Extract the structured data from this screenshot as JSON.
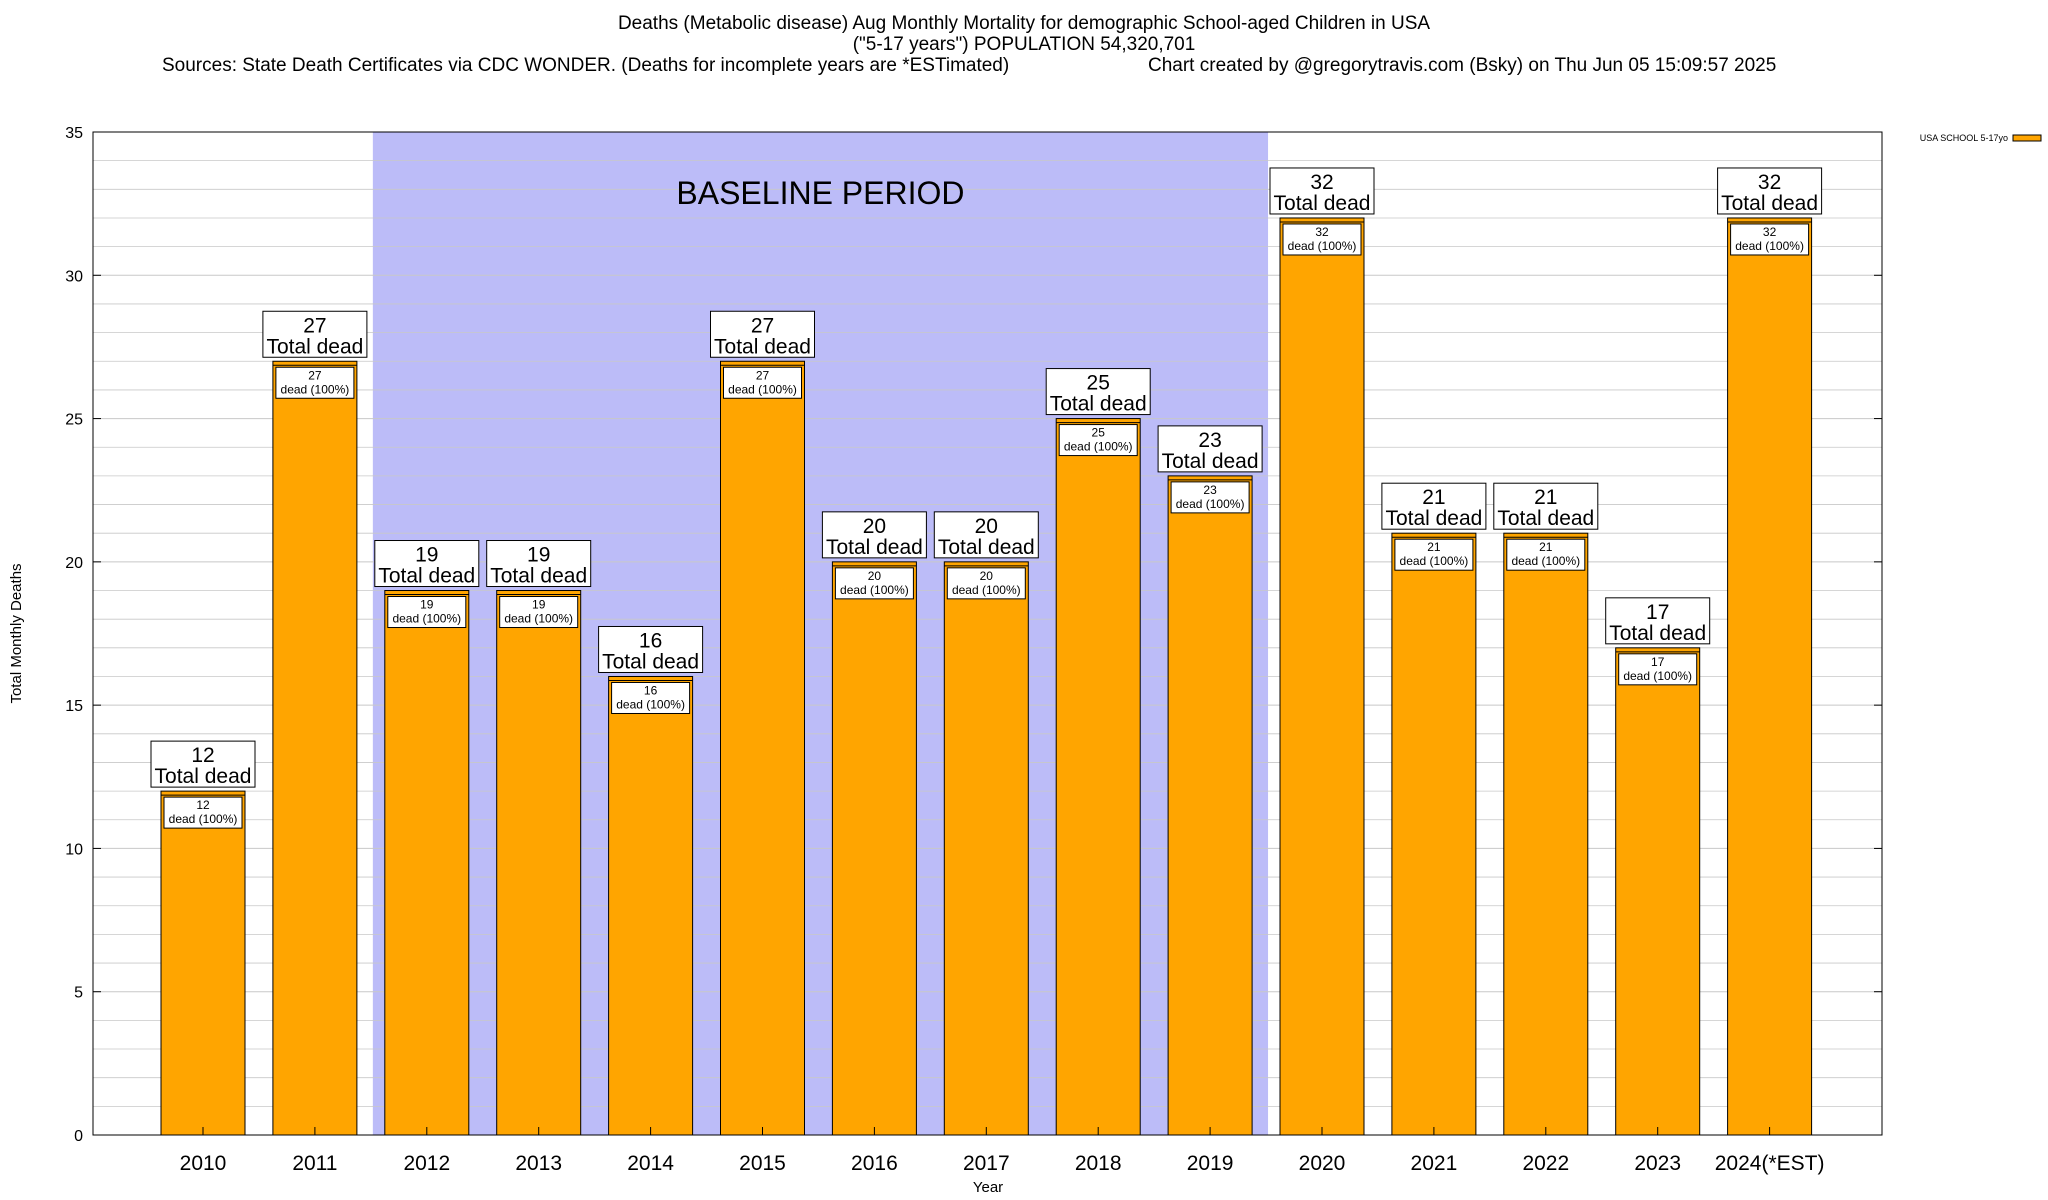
{
  "header": {
    "title_line1": "Deaths (Metabolic disease) Aug Monthly Mortality for demographic School-aged Children in USA",
    "title_line2": "(\"5-17 years\") POPULATION 54,320,701",
    "sources": "Sources: State Death Certificates via CDC WONDER. (Deaths for incomplete years are *ESTimated)",
    "credit": "Chart created by @gregorytravis.com (Bsky) on Thu Jun 05 15:09:57 2025"
  },
  "chart_data": {
    "type": "bar",
    "title": "Deaths (Metabolic disease) Aug Monthly Mortality for demographic School-aged Children in USA",
    "xlabel": "Year",
    "ylabel": "Total Monthly Deaths",
    "ylim": [
      0,
      35
    ],
    "yticks": [
      0,
      5,
      10,
      15,
      20,
      25,
      30,
      35
    ],
    "grid": true,
    "legend_position": "top-right",
    "categories": [
      "2010",
      "2011",
      "2012",
      "2013",
      "2014",
      "2015",
      "2016",
      "2017",
      "2018",
      "2019",
      "2020",
      "2021",
      "2022",
      "2023",
      "2024(*EST)"
    ],
    "series": [
      {
        "name": "USA SCHOOL 5-17yo",
        "values": [
          12,
          27,
          19,
          19,
          16,
          27,
          20,
          20,
          25,
          23,
          32,
          21,
          21,
          17,
          32
        ]
      }
    ],
    "top_label_suffix": "Total dead",
    "inner_label_suffix": "dead (100%)",
    "shaded_region": {
      "label": "BASELINE PERIOD",
      "from_category": "2012",
      "to_category": "2019"
    },
    "colors": {
      "bar": "#ffa500",
      "baseline_shade": "#bcbcf8",
      "grid": "#c8c8c8"
    }
  }
}
